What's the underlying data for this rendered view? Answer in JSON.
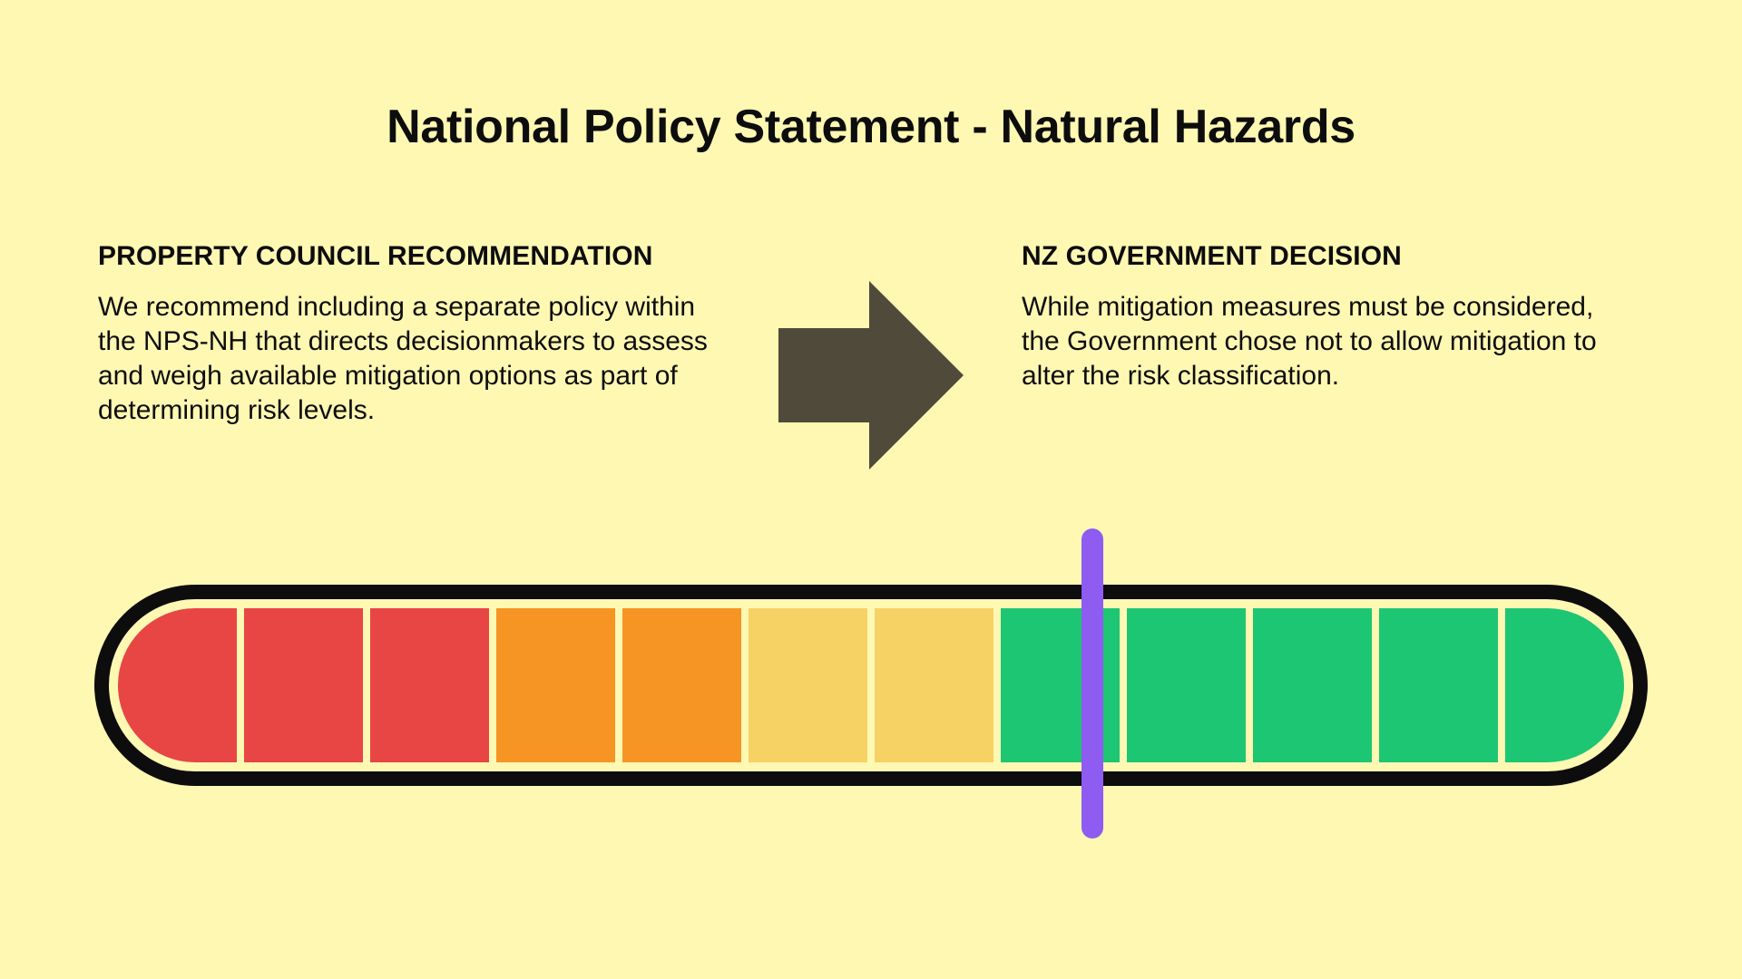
{
  "title": "National Policy Statement - Natural Hazards",
  "left_panel": {
    "heading": "PROPERTY COUNCIL RECOMMENDATION",
    "body": "We recommend including a separate policy within the NPS-NH that directs decisionmakers to assess and weigh available mitigation options as part of determining risk levels."
  },
  "right_panel": {
    "heading": "NZ GOVERNMENT DECISION",
    "body": "While mitigation measures must be considered, the Government chose not to allow mitigation to alter the risk classification."
  },
  "colors": {
    "background": "#FFF8B3",
    "arrow": "#4F4A3A",
    "gauge_border": "#0D0D0D",
    "marker": "#8E5CF0"
  },
  "gauge": {
    "segments": [
      {
        "color": "#E84545"
      },
      {
        "color": "#E84545"
      },
      {
        "color": "#E84545"
      },
      {
        "color": "#F69524"
      },
      {
        "color": "#F69524"
      },
      {
        "color": "#F6D265"
      },
      {
        "color": "#F6D265"
      },
      {
        "color": "#1DC673"
      },
      {
        "color": "#1DC673"
      },
      {
        "color": "#1DC673"
      },
      {
        "color": "#1DC673"
      },
      {
        "color": "#1DC673"
      }
    ],
    "marker_position": 0.647
  }
}
